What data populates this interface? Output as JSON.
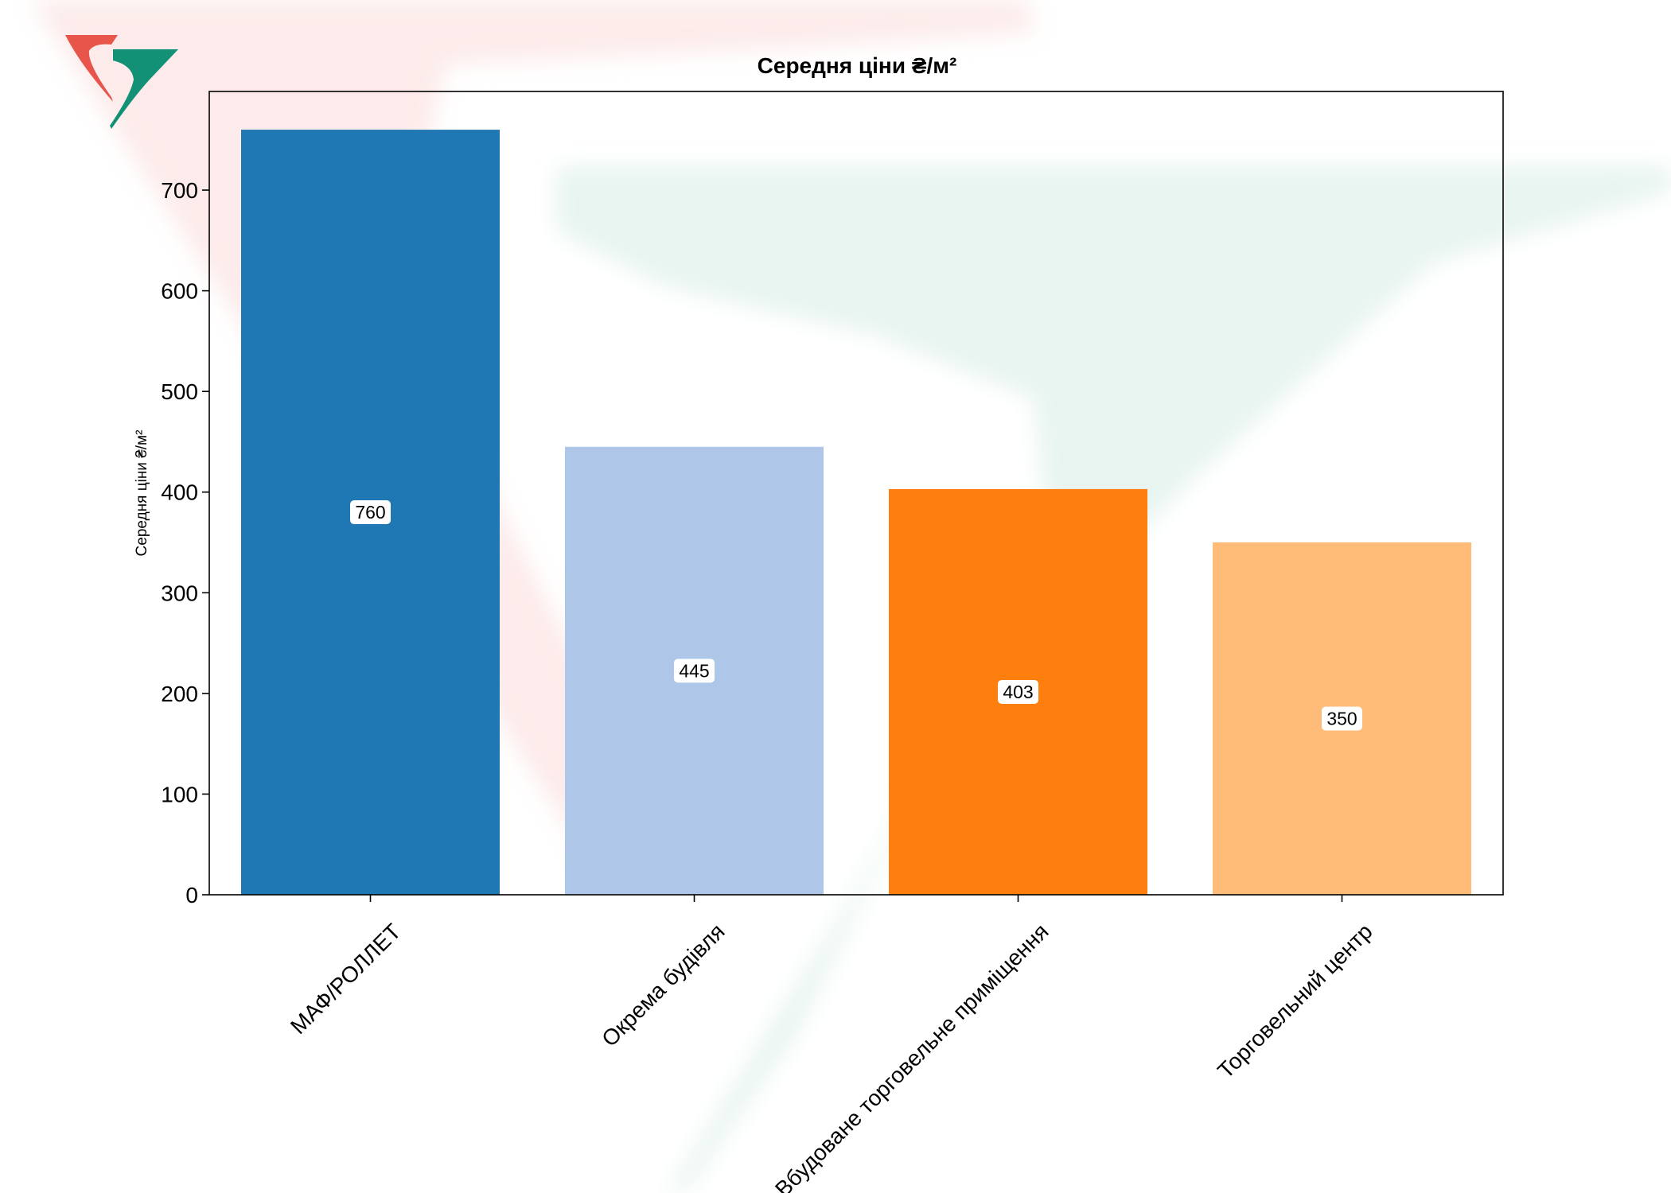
{
  "chart_data": {
    "type": "bar",
    "title": "Середня ціни ₴/м²",
    "xlabel": "",
    "ylabel": "Середня ціни ₴/м²",
    "categories": [
      "МАФ/РОЛЛЕТ",
      "Окрема будівля",
      "Вбудоване торговельне приміщення",
      "Торговельний центр"
    ],
    "values": [
      760,
      445,
      403,
      350
    ],
    "data_labels": [
      "760",
      "445",
      "403",
      "350"
    ],
    "bar_colors": [
      "#1f77b4",
      "#aec7e8",
      "#ff7f0e",
      "#ffbb78"
    ],
    "yticks": [
      0,
      100,
      200,
      300,
      400,
      500,
      600,
      700
    ],
    "ylim": [
      0,
      798
    ],
    "grid": false,
    "legend": "none"
  },
  "logo": {
    "colors": [
      "#e8564b",
      "#139177"
    ]
  }
}
